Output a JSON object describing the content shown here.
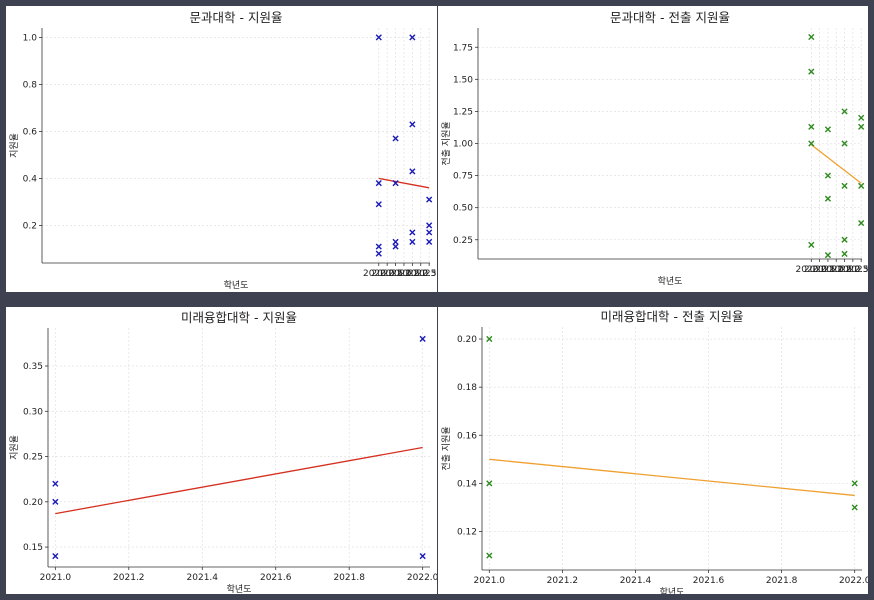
{
  "chart_data": [
    {
      "type": "scatter",
      "title": "문과대학 - 지원율",
      "xlabel": "학년도",
      "ylabel": "지원율",
      "xlim": [
        1999.95,
        2023.05
      ],
      "ylim": [
        0.04,
        1.04
      ],
      "xticks": [
        2020.0,
        2020.5,
        2021.0,
        2021.5,
        2022.0,
        2022.5,
        2023.0
      ],
      "yticks": [
        0.2,
        0.4,
        0.6,
        0.8,
        1.0
      ],
      "marker_color": "#1a1ab8",
      "trend_color": "#d62f1f",
      "grid": true,
      "points": [
        [
          2020,
          1.0
        ],
        [
          2020,
          0.38
        ],
        [
          2020,
          0.29
        ],
        [
          2020,
          0.11
        ],
        [
          2020,
          0.08
        ],
        [
          2021,
          0.57
        ],
        [
          2021,
          0.38
        ],
        [
          2021,
          0.13
        ],
        [
          2021,
          0.11
        ],
        [
          2022,
          1.0
        ],
        [
          2022,
          0.63
        ],
        [
          2022,
          0.43
        ],
        [
          2022,
          0.17
        ],
        [
          2022,
          0.13
        ],
        [
          2023,
          0.31
        ],
        [
          2023,
          0.2
        ],
        [
          2023,
          0.17
        ],
        [
          2023,
          0.13
        ]
      ],
      "trend": [
        [
          2020,
          0.4
        ],
        [
          2023,
          0.36
        ]
      ]
    },
    {
      "type": "scatter",
      "title": "문과대학 - 전출 지원율",
      "xlabel": "학년도",
      "ylabel": "전출 지원율",
      "xlim": [
        1999.95,
        2023.05
      ],
      "ylim": [
        0.1,
        1.9
      ],
      "xticks": [
        2020.0,
        2020.5,
        2021.0,
        2021.5,
        2022.0,
        2022.5,
        2023.0
      ],
      "yticks": [
        0.25,
        0.5,
        0.75,
        1.0,
        1.25,
        1.5,
        1.75
      ],
      "marker_color": "#2e8b1e",
      "trend_color": "#f0a030",
      "grid": true,
      "points": [
        [
          2020,
          1.83
        ],
        [
          2020,
          1.56
        ],
        [
          2020,
          1.13
        ],
        [
          2020,
          1.0
        ],
        [
          2020,
          0.21
        ],
        [
          2021,
          1.11
        ],
        [
          2021,
          0.75
        ],
        [
          2021,
          0.57
        ],
        [
          2021,
          0.13
        ],
        [
          2022,
          1.25
        ],
        [
          2022,
          1.0
        ],
        [
          2022,
          0.67
        ],
        [
          2022,
          0.25
        ],
        [
          2022,
          0.14
        ],
        [
          2023,
          1.2
        ],
        [
          2023,
          1.13
        ],
        [
          2023,
          0.67
        ],
        [
          2023,
          0.38
        ]
      ],
      "trend": [
        [
          2020,
          0.99
        ],
        [
          2023,
          0.69
        ]
      ]
    },
    {
      "type": "scatter",
      "title": "미래융합대학 - 지원율",
      "xlabel": "학년도",
      "ylabel": "지원율",
      "xlim": [
        2020.98,
        2022.02
      ],
      "ylim": [
        0.128,
        0.392
      ],
      "xticks": [
        2021.0,
        2021.2,
        2021.4,
        2021.6,
        2021.8,
        2022.0
      ],
      "yticks": [
        0.15,
        0.2,
        0.25,
        0.3,
        0.35
      ],
      "marker_color": "#1a1ab8",
      "trend_color": "#d62f1f",
      "grid": true,
      "points": [
        [
          2021,
          0.22
        ],
        [
          2021,
          0.2
        ],
        [
          2021,
          0.14
        ],
        [
          2022,
          0.38
        ],
        [
          2022,
          0.14
        ]
      ],
      "trend": [
        [
          2021,
          0.187
        ],
        [
          2022,
          0.26
        ]
      ]
    },
    {
      "type": "scatter",
      "title": "미래융합대학 - 전출 지원율",
      "xlabel": "학년도",
      "ylabel": "전출 지원율",
      "xlim": [
        2020.98,
        2022.02
      ],
      "ylim": [
        0.104,
        0.205
      ],
      "xticks": [
        2021.0,
        2021.2,
        2021.4,
        2021.6,
        2021.8,
        2022.0
      ],
      "yticks": [
        0.12,
        0.14,
        0.16,
        0.18,
        0.2
      ],
      "marker_color": "#2e8b1e",
      "trend_color": "#f0a030",
      "grid": true,
      "points": [
        [
          2021,
          0.2
        ],
        [
          2021,
          0.14
        ],
        [
          2021,
          0.11
        ],
        [
          2022,
          0.14
        ],
        [
          2022,
          0.13
        ]
      ],
      "trend": [
        [
          2021,
          0.15
        ],
        [
          2022,
          0.135
        ]
      ]
    }
  ]
}
